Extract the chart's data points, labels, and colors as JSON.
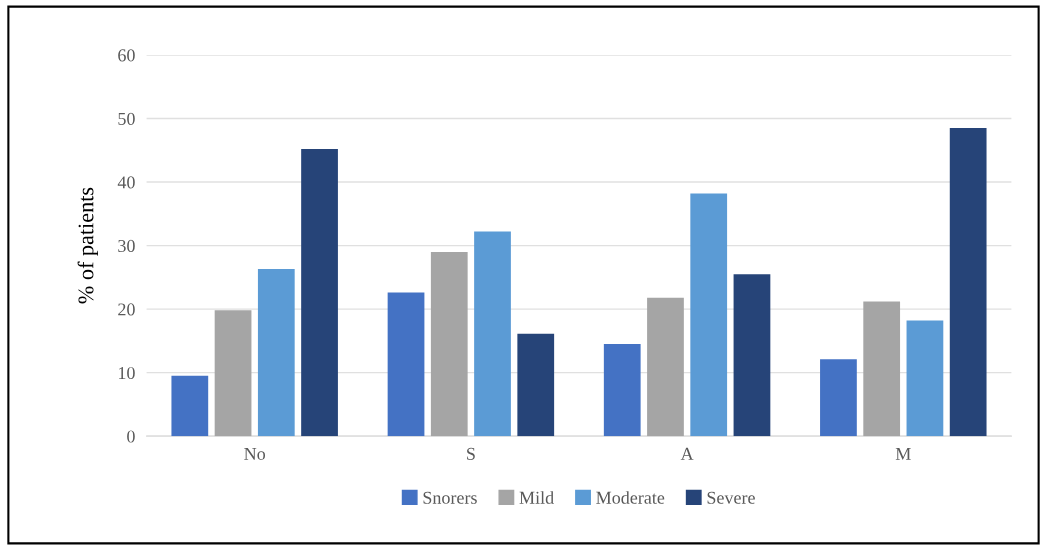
{
  "chart_data": {
    "type": "bar",
    "ylabel": "% of patients",
    "categories": [
      "No",
      "S",
      "A",
      "M"
    ],
    "series": [
      {
        "name": "Snorers",
        "color": "#4472c4",
        "values": [
          9.5,
          22.6,
          14.5,
          12.1
        ]
      },
      {
        "name": "Mild",
        "color": "#a5a5a5",
        "values": [
          19.8,
          29.0,
          21.8,
          21.2
        ]
      },
      {
        "name": "Moderate",
        "color": "#5b9bd5",
        "values": [
          26.3,
          32.2,
          38.2,
          18.2
        ]
      },
      {
        "name": "Severe",
        "color": "#264478",
        "values": [
          45.2,
          16.1,
          25.5,
          48.5
        ]
      }
    ],
    "ylim": [
      0,
      60
    ],
    "yticks": [
      0,
      10,
      20,
      30,
      40,
      50,
      60
    ],
    "grid": "y",
    "legend": "bottom"
  }
}
